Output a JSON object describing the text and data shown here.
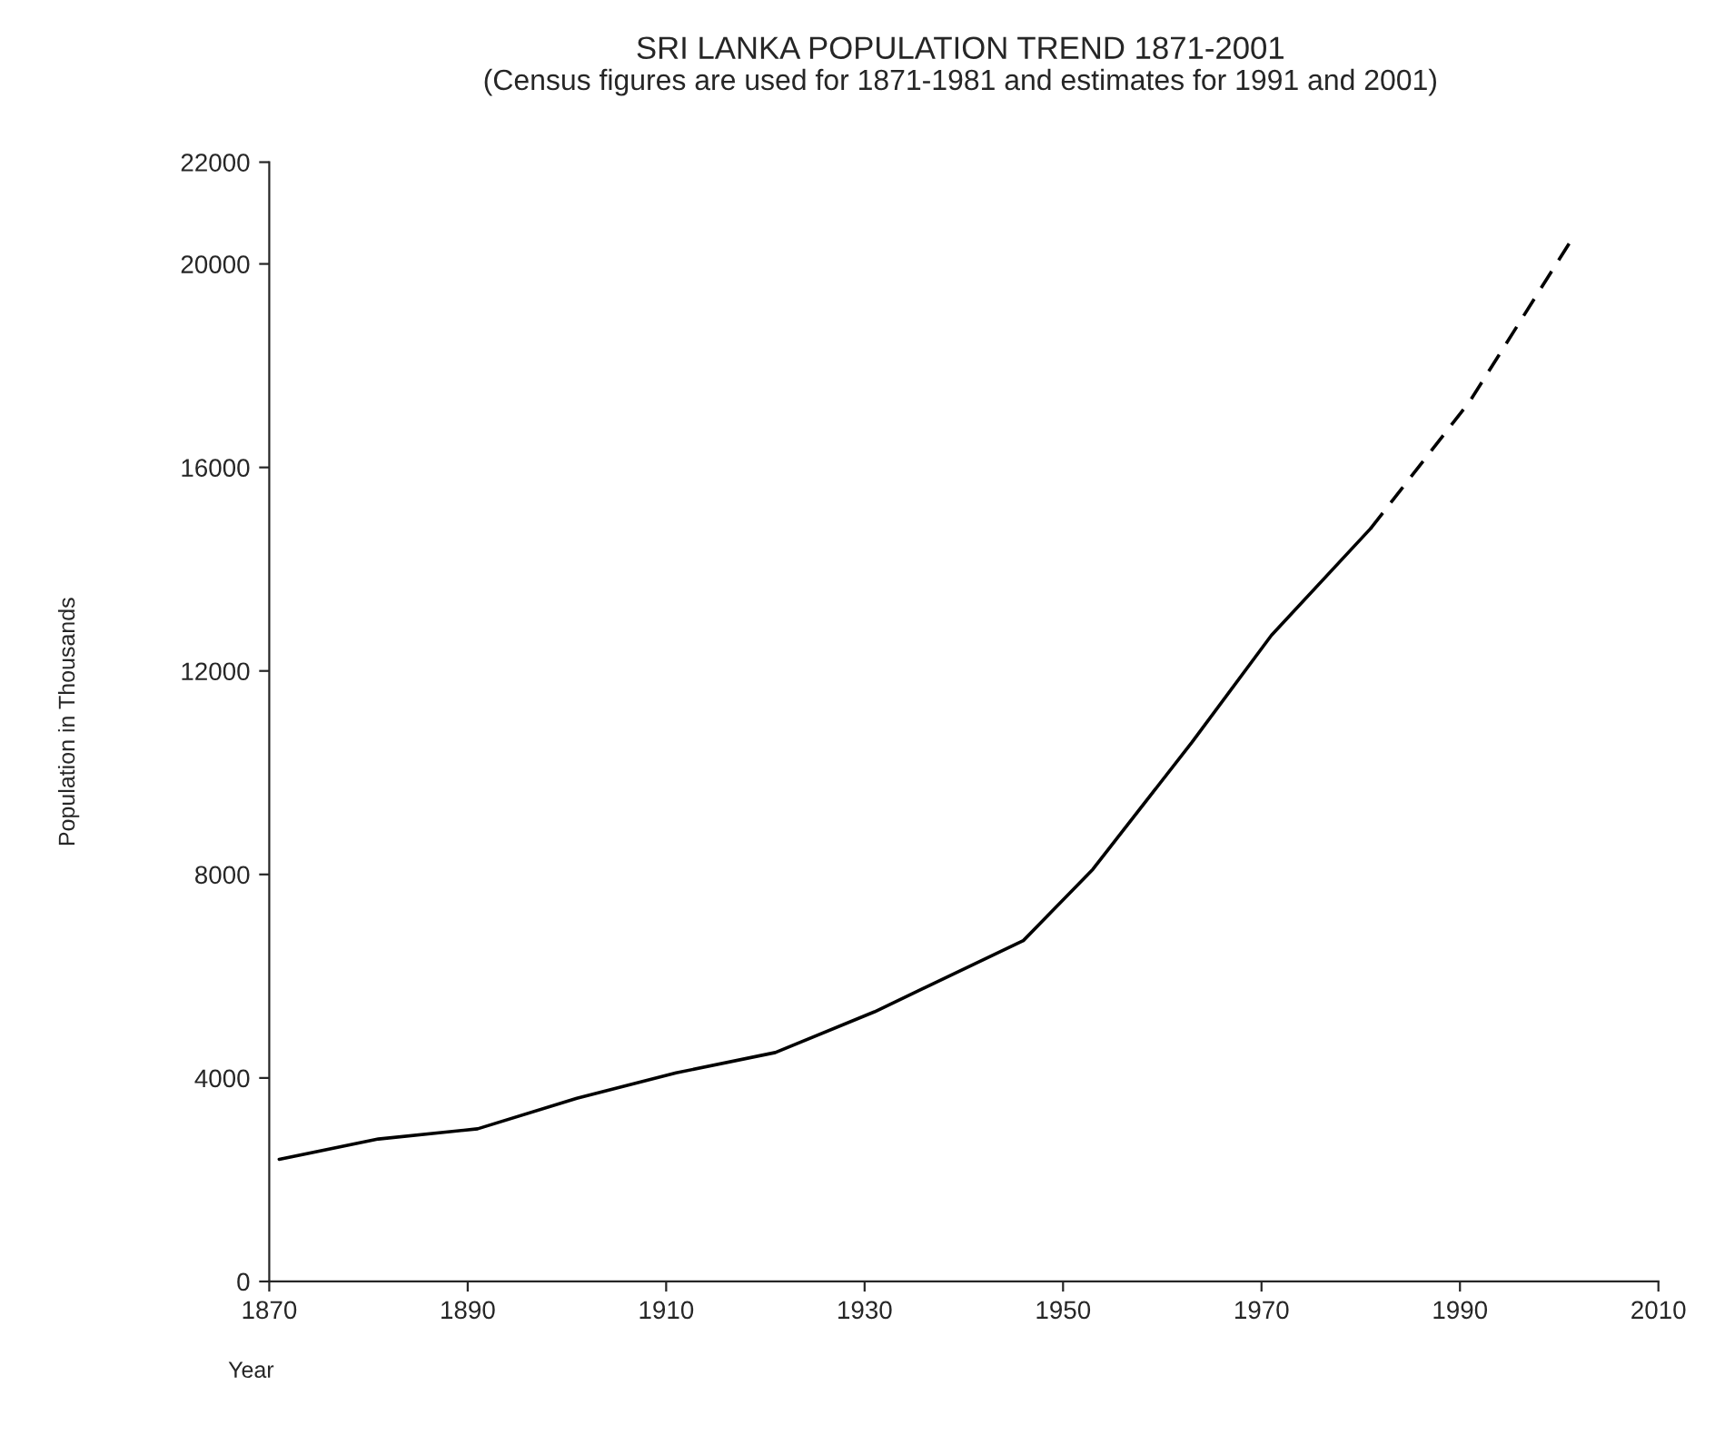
{
  "chart_data": {
    "type": "line",
    "title": "SRI LANKA POPULATION TREND 1871-2001",
    "subtitle": "(Census figures are used for 1871-1981 and estimates for 1991 and 2001)",
    "xlabel": "Year",
    "ylabel": "Population in Thousands",
    "series": [
      {
        "color": "#000000",
        "line_style": "solid",
        "x": [
          1871,
          1881,
          1891,
          1901,
          1911,
          1921,
          1931,
          1946,
          1953,
          1963,
          1971,
          1981
        ],
        "values": [
          2400,
          2800,
          3000,
          3600,
          4100,
          4500,
          5300,
          6700,
          8100,
          10600,
          12700,
          14800
        ]
      },
      {
        "color": "#000000",
        "line_style": "dashed",
        "x": [
          1981,
          1991,
          2001
        ],
        "values": [
          14800,
          17300,
          20400
        ]
      }
    ],
    "xlim": [
      1870,
      2010
    ],
    "xticks": [
      1870,
      1890,
      1910,
      1930,
      1950,
      1970,
      1990,
      2010
    ],
    "ylim": [
      0,
      22000
    ],
    "yticks": [
      0,
      4000,
      8000,
      12000,
      16000,
      20000,
      22000
    ],
    "grid": false,
    "marker": "none"
  }
}
